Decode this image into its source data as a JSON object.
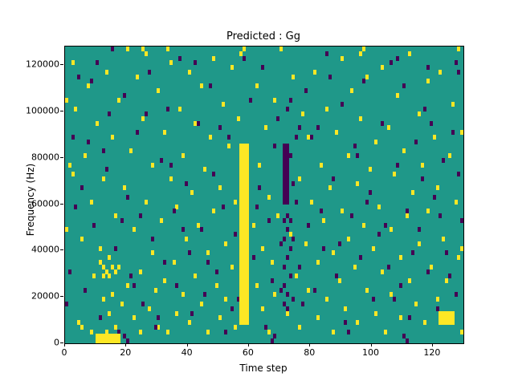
{
  "title": "Predicted : Gg",
  "xlabel": "Time step",
  "ylabel": "Frequency (Hz)",
  "chart_data": {
    "type": "heatmap",
    "title": "Predicted : Gg",
    "xlabel": "Time step",
    "ylabel": "Frequency (Hz)",
    "grid": {
      "cols": 130,
      "rows": 64,
      "freq_per_bin": 2000
    },
    "xlim": [
      0,
      130
    ],
    "ylim": [
      0,
      128000
    ],
    "xticks": [
      0,
      20,
      40,
      60,
      80,
      100,
      120
    ],
    "yticks": [
      0,
      20000,
      40000,
      60000,
      80000,
      100000,
      120000
    ],
    "grid_lines": false,
    "legend": "none",
    "colors": {
      "background": "#1f9889",
      "high": "#fde725",
      "low": "#440154"
    },
    "bands": [
      {
        "cols": [
          57,
          59
        ],
        "bins": [
          4,
          42
        ],
        "color": "high"
      },
      {
        "cols": [
          122,
          126
        ],
        "bins": [
          4,
          6
        ],
        "color": "high"
      },
      {
        "cols": [
          71,
          72
        ],
        "bins": [
          30,
          42
        ],
        "color": "low"
      },
      {
        "cols": [
          10,
          17
        ],
        "bins": [
          0,
          1
        ],
        "color": "high"
      }
    ],
    "yellow_cells": [
      [
        2,
        60
      ],
      [
        2,
        36
      ],
      [
        3,
        50
      ],
      [
        4,
        4
      ],
      [
        5,
        22
      ],
      [
        5,
        3
      ],
      [
        6,
        40
      ],
      [
        7,
        55
      ],
      [
        8,
        2
      ],
      [
        8,
        30
      ],
      [
        9,
        14
      ],
      [
        10,
        47
      ],
      [
        11,
        20
      ],
      [
        12,
        9
      ],
      [
        12,
        35
      ],
      [
        13,
        2
      ],
      [
        13,
        58
      ],
      [
        14,
        18
      ],
      [
        14,
        6
      ],
      [
        15,
        44
      ],
      [
        15,
        10
      ],
      [
        16,
        27
      ],
      [
        16,
        3
      ],
      [
        17,
        16
      ],
      [
        17,
        52
      ],
      [
        18,
        8
      ],
      [
        19,
        33
      ],
      [
        20,
        12
      ],
      [
        20,
        63
      ],
      [
        21,
        41
      ],
      [
        22,
        5
      ],
      [
        22,
        24
      ],
      [
        23,
        57
      ],
      [
        24,
        15
      ],
      [
        24,
        2
      ],
      [
        25,
        48
      ],
      [
        26,
        30
      ],
      [
        26,
        62
      ],
      [
        27,
        7
      ],
      [
        28,
        19
      ],
      [
        28,
        38
      ],
      [
        29,
        11
      ],
      [
        30,
        54
      ],
      [
        30,
        3
      ],
      [
        31,
        26
      ],
      [
        32,
        45
      ],
      [
        32,
        13
      ],
      [
        33,
        2
      ],
      [
        34,
        35
      ],
      [
        34,
        60
      ],
      [
        35,
        17
      ],
      [
        36,
        6
      ],
      [
        36,
        29
      ],
      [
        37,
        50
      ],
      [
        38,
        10
      ],
      [
        38,
        40
      ],
      [
        39,
        22
      ],
      [
        40,
        58
      ],
      [
        40,
        4
      ],
      [
        41,
        32
      ],
      [
        42,
        14
      ],
      [
        42,
        47
      ],
      [
        43,
        25
      ],
      [
        44,
        8
      ],
      [
        44,
        55
      ],
      [
        45,
        37
      ],
      [
        46,
        2
      ],
      [
        46,
        19
      ],
      [
        47,
        44
      ],
      [
        48,
        28
      ],
      [
        48,
        61
      ],
      [
        49,
        12
      ],
      [
        50,
        33
      ],
      [
        50,
        5
      ],
      [
        51,
        51
      ],
      [
        52,
        21
      ],
      [
        52,
        9
      ],
      [
        53,
        42
      ],
      [
        54,
        16
      ],
      [
        54,
        59
      ],
      [
        55,
        3
      ],
      [
        55,
        30
      ],
      [
        56,
        48
      ],
      [
        61,
        25
      ],
      [
        62,
        12
      ],
      [
        62,
        55
      ],
      [
        63,
        38
      ],
      [
        64,
        7
      ],
      [
        64,
        20
      ],
      [
        65,
        46
      ],
      [
        66,
        31
      ],
      [
        66,
        2
      ],
      [
        67,
        17
      ],
      [
        68,
        52
      ],
      [
        68,
        10
      ],
      [
        69,
        27
      ],
      [
        70,
        63
      ],
      [
        71,
        40
      ],
      [
        72,
        6
      ],
      [
        73,
        23
      ],
      [
        74,
        57
      ],
      [
        75,
        14
      ],
      [
        76,
        35
      ],
      [
        76,
        3
      ],
      [
        77,
        49
      ],
      [
        78,
        21
      ],
      [
        79,
        11
      ],
      [
        79,
        44
      ],
      [
        80,
        30
      ],
      [
        81,
        58
      ],
      [
        82,
        17
      ],
      [
        82,
        5
      ],
      [
        83,
        38
      ],
      [
        84,
        26
      ],
      [
        85,
        9
      ],
      [
        85,
        50
      ],
      [
        86,
        33
      ],
      [
        87,
        2
      ],
      [
        87,
        19
      ],
      [
        88,
        45
      ],
      [
        89,
        13
      ],
      [
        90,
        28
      ],
      [
        90,
        61
      ],
      [
        91,
        7
      ],
      [
        92,
        40
      ],
      [
        92,
        22
      ],
      [
        93,
        54
      ],
      [
        94,
        16
      ],
      [
        95,
        34
      ],
      [
        95,
        4
      ],
      [
        96,
        48
      ],
      [
        97,
        25
      ],
      [
        98,
        11
      ],
      [
        98,
        57
      ],
      [
        99,
        37
      ],
      [
        100,
        20
      ],
      [
        101,
        6
      ],
      [
        101,
        43
      ],
      [
        102,
        29
      ],
      [
        103,
        15
      ],
      [
        103,
        59
      ],
      [
        104,
        2
      ],
      [
        105,
        46
      ],
      [
        106,
        24
      ],
      [
        106,
        10
      ],
      [
        107,
        36
      ],
      [
        108,
        53
      ],
      [
        109,
        18
      ],
      [
        109,
        5
      ],
      [
        110,
        41
      ],
      [
        111,
        27
      ],
      [
        112,
        13
      ],
      [
        112,
        62
      ],
      [
        113,
        32
      ],
      [
        114,
        8
      ],
      [
        115,
        49
      ],
      [
        115,
        21
      ],
      [
        116,
        38
      ],
      [
        117,
        4
      ],
      [
        118,
        28
      ],
      [
        118,
        56
      ],
      [
        119,
        16
      ],
      [
        120,
        44
      ],
      [
        121,
        9
      ],
      [
        121,
        33
      ],
      [
        122,
        58
      ],
      [
        123,
        22
      ],
      [
        124,
        13
      ],
      [
        125,
        40
      ],
      [
        126,
        6
      ],
      [
        126,
        51
      ],
      [
        127,
        30
      ],
      [
        128,
        63
      ],
      [
        128,
        18
      ],
      [
        129,
        45
      ],
      [
        0,
        24
      ],
      [
        0,
        52
      ],
      [
        1,
        38
      ],
      [
        25,
        63
      ],
      [
        33,
        63
      ],
      [
        57,
        62
      ],
      [
        58,
        63
      ],
      [
        96,
        62
      ],
      [
        97,
        63
      ],
      [
        129,
        2
      ],
      [
        129,
        20
      ],
      [
        12,
        16
      ],
      [
        13,
        15
      ],
      [
        14,
        14
      ],
      [
        15,
        16
      ],
      [
        16,
        15
      ],
      [
        11,
        17
      ],
      [
        12,
        14
      ]
    ],
    "purple_cells": [
      [
        1,
        15
      ],
      [
        3,
        29
      ],
      [
        4,
        57
      ],
      [
        6,
        11
      ],
      [
        7,
        43
      ],
      [
        9,
        25
      ],
      [
        10,
        60
      ],
      [
        11,
        5
      ],
      [
        13,
        37
      ],
      [
        14,
        49
      ],
      [
        16,
        20
      ],
      [
        17,
        2
      ],
      [
        19,
        53
      ],
      [
        20,
        31
      ],
      [
        21,
        14
      ],
      [
        23,
        45
      ],
      [
        24,
        27
      ],
      [
        25,
        8
      ],
      [
        27,
        58
      ],
      [
        28,
        22
      ],
      [
        29,
        3
      ],
      [
        31,
        39
      ],
      [
        32,
        17
      ],
      [
        33,
        50
      ],
      [
        35,
        28
      ],
      [
        36,
        12
      ],
      [
        37,
        61
      ],
      [
        39,
        34
      ],
      [
        40,
        19
      ],
      [
        41,
        6
      ],
      [
        43,
        47
      ],
      [
        44,
        24
      ],
      [
        45,
        10
      ],
      [
        47,
        55
      ],
      [
        48,
        36
      ],
      [
        49,
        15
      ],
      [
        51,
        29
      ],
      [
        52,
        2
      ],
      [
        53,
        44
      ],
      [
        55,
        23
      ],
      [
        56,
        9
      ],
      [
        60,
        52
      ],
      [
        61,
        18
      ],
      [
        63,
        33
      ],
      [
        64,
        59
      ],
      [
        66,
        26
      ],
      [
        67,
        13
      ],
      [
        69,
        48
      ],
      [
        70,
        21
      ],
      [
        72,
        7
      ],
      [
        73,
        40
      ],
      [
        75,
        30
      ],
      [
        76,
        16
      ],
      [
        78,
        54
      ],
      [
        79,
        25
      ],
      [
        81,
        11
      ],
      [
        82,
        46
      ],
      [
        84,
        20
      ],
      [
        85,
        62
      ],
      [
        87,
        35
      ],
      [
        88,
        14
      ],
      [
        90,
        51
      ],
      [
        91,
        4
      ],
      [
        93,
        27
      ],
      [
        94,
        42
      ],
      [
        96,
        18
      ],
      [
        97,
        56
      ],
      [
        99,
        32
      ],
      [
        100,
        9
      ],
      [
        102,
        23
      ],
      [
        103,
        47
      ],
      [
        105,
        16
      ],
      [
        106,
        60
      ],
      [
        108,
        38
      ],
      [
        109,
        12
      ],
      [
        111,
        28
      ],
      [
        112,
        5
      ],
      [
        114,
        43
      ],
      [
        115,
        24
      ],
      [
        117,
        50
      ],
      [
        118,
        15
      ],
      [
        120,
        31
      ],
      [
        121,
        7
      ],
      [
        123,
        39
      ],
      [
        124,
        19
      ],
      [
        126,
        45
      ],
      [
        127,
        10
      ],
      [
        129,
        26
      ],
      [
        0,
        8
      ],
      [
        2,
        44
      ],
      [
        5,
        33
      ],
      [
        8,
        56
      ],
      [
        12,
        41
      ],
      [
        15,
        63
      ],
      [
        18,
        26
      ],
      [
        22,
        12
      ],
      [
        26,
        49
      ],
      [
        30,
        5
      ],
      [
        34,
        38
      ],
      [
        38,
        24
      ],
      [
        42,
        60
      ],
      [
        46,
        17
      ],
      [
        50,
        46
      ],
      [
        54,
        7
      ],
      [
        58,
        61
      ],
      [
        62,
        29
      ],
      [
        65,
        3
      ],
      [
        68,
        42
      ],
      [
        71,
        16
      ],
      [
        74,
        34
      ],
      [
        77,
        8
      ],
      [
        80,
        44
      ],
      [
        83,
        28
      ],
      [
        86,
        57
      ],
      [
        89,
        21
      ],
      [
        92,
        2
      ],
      [
        95,
        40
      ],
      [
        98,
        30
      ],
      [
        104,
        25
      ],
      [
        107,
        9
      ],
      [
        110,
        55
      ],
      [
        113,
        19
      ],
      [
        116,
        35
      ],
      [
        119,
        47
      ],
      [
        122,
        27
      ],
      [
        125,
        14
      ],
      [
        128,
        36
      ],
      [
        71,
        26
      ],
      [
        72,
        24
      ],
      [
        71,
        22
      ],
      [
        73,
        20
      ],
      [
        72,
        18
      ],
      [
        71,
        12
      ],
      [
        72,
        10
      ],
      [
        73,
        14
      ],
      [
        72,
        27
      ],
      [
        71,
        8
      ],
      [
        74,
        22
      ],
      [
        73,
        26
      ],
      [
        70,
        11
      ],
      [
        74,
        9
      ],
      [
        75,
        44
      ],
      [
        76,
        46
      ],
      [
        73,
        52
      ],
      [
        72,
        50
      ],
      [
        19,
        1
      ],
      [
        20,
        0
      ],
      [
        67,
        0
      ],
      [
        68,
        1
      ],
      [
        110,
        1
      ],
      [
        111,
        0
      ],
      [
        128,
        58
      ],
      [
        127,
        60
      ],
      [
        118,
        59
      ],
      [
        108,
        61
      ]
    ]
  }
}
